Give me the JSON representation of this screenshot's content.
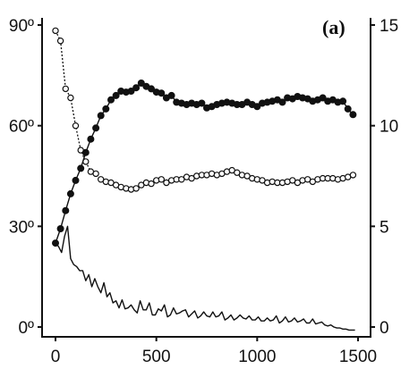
{
  "chart_data": {
    "type": "line",
    "panel_label": "(a)",
    "x_axis": {
      "lim": [
        0,
        1500
      ],
      "ticks": [
        0,
        500,
        1000,
        1500
      ],
      "tick_labels": [
        "0",
        "500",
        "1000",
        "1500"
      ]
    },
    "y_left": {
      "lim": [
        0,
        90
      ],
      "ticks": [
        0,
        30,
        60,
        90
      ],
      "tick_labels": [
        "0º",
        "30º",
        "60º",
        "90º"
      ]
    },
    "y_right": {
      "lim": [
        0,
        15
      ],
      "ticks": [
        0,
        5,
        10,
        15
      ],
      "tick_labels": [
        "0",
        "5",
        "10",
        "15"
      ]
    },
    "grid": false,
    "series": [
      {
        "axis": "left",
        "marker": "open-circle",
        "line": "dotted",
        "x": [
          0,
          25,
          50,
          75,
          100,
          125,
          150,
          175,
          200,
          225,
          250,
          275,
          300,
          325,
          350,
          375,
          400,
          425,
          450,
          475,
          500,
          525,
          550,
          575,
          600,
          625,
          650,
          675,
          700,
          725,
          750,
          775,
          800,
          825,
          850,
          875,
          900,
          925,
          950,
          975,
          1000,
          1025,
          1050,
          1075,
          1100,
          1125,
          1150,
          1175,
          1200,
          1225,
          1250,
          1275,
          1300,
          1325,
          1350,
          1375,
          1400,
          1425,
          1450,
          1475
        ],
        "y": [
          88.3,
          85.3,
          71,
          68.3,
          60,
          52.7,
          49.3,
          46.3,
          45.7,
          44,
          43.3,
          43,
          42.3,
          41.7,
          41.3,
          41,
          41.3,
          42.3,
          43,
          42.7,
          43.7,
          44,
          43,
          43.7,
          44,
          44,
          44.7,
          44.3,
          45,
          45.3,
          45.3,
          45.7,
          45.3,
          45.7,
          46.3,
          46.7,
          46,
          45.3,
          45,
          44.3,
          44,
          43.7,
          43,
          43.3,
          43,
          43,
          43.3,
          43.7,
          43,
          43.7,
          44,
          43.3,
          44,
          44.3,
          44.3,
          44.3,
          44,
          44.3,
          44.7,
          45.3
        ]
      },
      {
        "axis": "left",
        "marker": "filled-circle",
        "line": "solid",
        "x": [
          0,
          25,
          50,
          75,
          100,
          125,
          150,
          175,
          200,
          225,
          250,
          275,
          300,
          325,
          350,
          375,
          400,
          425,
          450,
          475,
          500,
          525,
          550,
          575,
          600,
          625,
          650,
          675,
          700,
          725,
          750,
          775,
          800,
          825,
          850,
          875,
          900,
          925,
          950,
          975,
          1000,
          1025,
          1050,
          1075,
          1100,
          1125,
          1150,
          1175,
          1200,
          1225,
          1250,
          1275,
          1300,
          1325,
          1350,
          1375,
          1400,
          1425,
          1450,
          1475
        ],
        "y": [
          25,
          29.3,
          34.7,
          39.7,
          43.7,
          47.3,
          52,
          56,
          59.3,
          63,
          65,
          67.7,
          69,
          70.3,
          70,
          70.3,
          71.3,
          72.7,
          71.7,
          71,
          70,
          69.7,
          68.3,
          69,
          67,
          66.7,
          66.3,
          66.7,
          66.3,
          66.7,
          65.3,
          65.7,
          66.3,
          66.7,
          67,
          66.7,
          66.3,
          66.3,
          67,
          66.3,
          65.7,
          66.7,
          67,
          67.3,
          67.7,
          67,
          68.3,
          68,
          68.7,
          68.3,
          68,
          67.3,
          67.7,
          68.3,
          67.3,
          67.7,
          67,
          67.3,
          65,
          63.3
        ]
      },
      {
        "axis": "right",
        "marker": "none",
        "line": "solid",
        "x": [
          0,
          15,
          30,
          45,
          60,
          75,
          90,
          105,
          120,
          135,
          150,
          165,
          180,
          195,
          210,
          225,
          240,
          255,
          270,
          285,
          300,
          315,
          330,
          345,
          360,
          375,
          390,
          405,
          420,
          435,
          450,
          465,
          480,
          495,
          510,
          525,
          540,
          555,
          570,
          585,
          600,
          615,
          630,
          645,
          660,
          675,
          690,
          705,
          720,
          735,
          750,
          765,
          780,
          795,
          810,
          825,
          840,
          855,
          870,
          885,
          900,
          915,
          930,
          945,
          960,
          975,
          990,
          1005,
          1020,
          1035,
          1050,
          1065,
          1080,
          1095,
          1110,
          1125,
          1140,
          1155,
          1170,
          1185,
          1200,
          1215,
          1230,
          1245,
          1260,
          1275,
          1290,
          1305,
          1320,
          1335,
          1350,
          1365,
          1380,
          1395,
          1410,
          1425,
          1440,
          1455,
          1470,
          1485
        ],
        "y": [
          4.2,
          4.0,
          3.7,
          4.5,
          5.0,
          3.4,
          3.1,
          3.0,
          2.8,
          2.8,
          2.3,
          2.6,
          2.0,
          2.4,
          2.0,
          1.7,
          2.2,
          1.5,
          1.7,
          1.2,
          1.3,
          0.95,
          1.35,
          0.9,
          0.95,
          1.1,
          0.85,
          0.7,
          1.3,
          0.85,
          0.85,
          1.2,
          0.6,
          0.6,
          0.9,
          0.8,
          1.1,
          0.5,
          0.6,
          0.95,
          0.65,
          0.7,
          0.8,
          0.85,
          0.5,
          0.65,
          0.8,
          0.45,
          0.55,
          0.75,
          0.55,
          0.5,
          0.75,
          0.5,
          0.55,
          0.75,
          0.35,
          0.45,
          0.6,
          0.35,
          0.45,
          0.6,
          0.45,
          0.4,
          0.55,
          0.35,
          0.35,
          0.5,
          0.3,
          0.3,
          0.45,
          0.3,
          0.35,
          0.55,
          0.2,
          0.3,
          0.5,
          0.25,
          0.3,
          0.45,
          0.25,
          0.3,
          0.4,
          0.2,
          0.2,
          0.4,
          0.15,
          0.2,
          0.25,
          0.1,
          0.05,
          0.1,
          0.0,
          -0.05,
          -0.05,
          -0.1,
          -0.1,
          -0.15,
          -0.15,
          -0.15
        ]
      }
    ]
  }
}
